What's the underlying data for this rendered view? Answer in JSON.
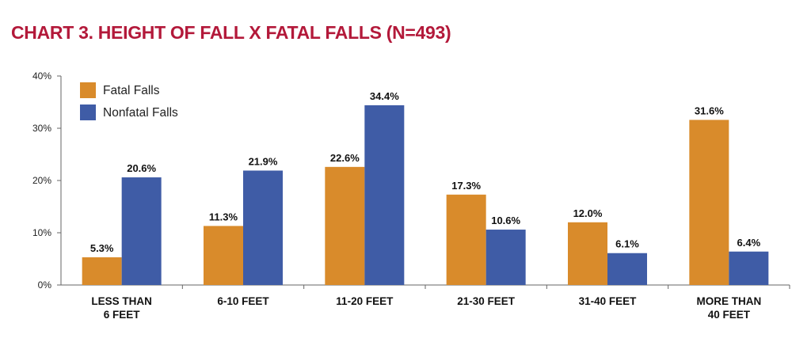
{
  "title": "CHART 3. HEIGHT OF FALL X FATAL FALLS (N=493)",
  "chart_data": {
    "type": "bar",
    "title": "CHART 3. HEIGHT OF FALL X FATAL FALLS (N=493)",
    "categories": [
      [
        "LESS THAN",
        "6 FEET"
      ],
      [
        "6-10 FEET"
      ],
      [
        "11-20 FEET"
      ],
      [
        "21-30 FEET"
      ],
      [
        "31-40 FEET"
      ],
      [
        "MORE THAN",
        "40 FEET"
      ]
    ],
    "series": [
      {
        "name": "Fatal Falls",
        "color": "#d98b2b",
        "values": [
          5.3,
          11.3,
          22.6,
          17.3,
          12.0,
          31.6
        ],
        "labels": [
          "5.3%",
          "11.3%",
          "22.6%",
          "17.3%",
          "12.0%",
          "31.6%"
        ]
      },
      {
        "name": "Nonfatal Falls",
        "color": "#3f5ca6",
        "values": [
          20.6,
          21.9,
          34.4,
          10.6,
          6.1,
          6.4
        ],
        "labels": [
          "20.6%",
          "21.9%",
          "34.4%",
          "10.6%",
          "6.1%",
          "6.4%"
        ]
      }
    ],
    "yticks": [
      "0%",
      "10%",
      "20%",
      "30%",
      "40%"
    ],
    "ylim": [
      0,
      40
    ],
    "xlabel": "",
    "ylabel": "",
    "grid": false,
    "legend": "top-left"
  }
}
